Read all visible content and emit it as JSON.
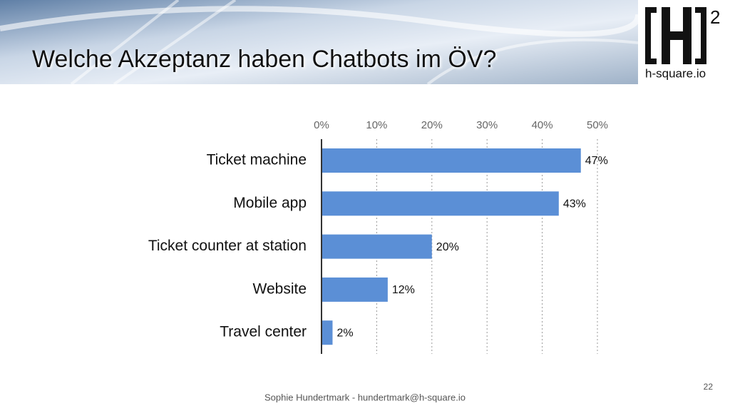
{
  "slide": {
    "logo_text": "h-square.io",
    "logo_sup": "2",
    "footer": "Sophie Hundertmark - hundertmark@h-square.io",
    "page_number": "22"
  },
  "chart_data": {
    "type": "bar",
    "orientation": "horizontal",
    "title": "Welche Akzeptanz haben Chatbots im ÖV?",
    "categories": [
      "Ticket machine",
      "Mobile app",
      "Ticket counter at station",
      "Website",
      "Travel center"
    ],
    "values": [
      47,
      43,
      20,
      12,
      2
    ],
    "value_labels": [
      "47%",
      "43%",
      "20%",
      "12%",
      "2%"
    ],
    "color": "#5b8fd6",
    "xlim": [
      0,
      50
    ],
    "xticks": [
      {
        "value": 0,
        "label": "0%"
      },
      {
        "value": 10,
        "label": "10%"
      },
      {
        "value": 20,
        "label": "20%"
      },
      {
        "value": 30,
        "label": "30%"
      },
      {
        "value": 40,
        "label": "40%"
      },
      {
        "value": 50,
        "label": "50%"
      }
    ],
    "grid": true
  }
}
